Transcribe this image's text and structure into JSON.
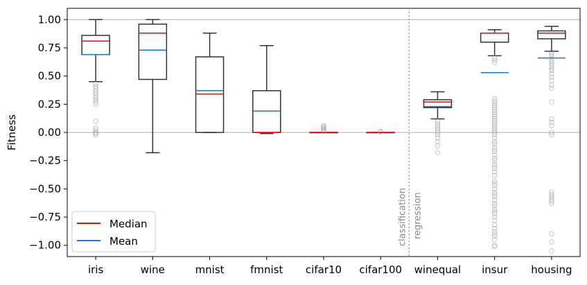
{
  "chart_data": {
    "type": "boxplot",
    "title": "",
    "xlabel": "",
    "ylabel": "Fitness",
    "ylim": [
      -1.1,
      1.1
    ],
    "yticks": [
      1.0,
      0.75,
      0.5,
      0.25,
      0.0,
      -0.25,
      -0.5,
      -0.75,
      -1.0
    ],
    "ytick_labels": [
      "1.00",
      "0.75",
      "0.50",
      "0.25",
      "0.00",
      "−0.25",
      "−0.50",
      "−0.75",
      "−1.00"
    ],
    "reference_lines": [
      1.0,
      0.0
    ],
    "categories": [
      "iris",
      "wine",
      "mnist",
      "fmnist",
      "cifar10",
      "cifar100",
      "winequal",
      "insur",
      "housing"
    ],
    "boxes": [
      {
        "q1": 0.69,
        "q3": 0.86,
        "median": 0.81,
        "mean": 0.69,
        "whisker_low": 0.45,
        "whisker_high": 1.0,
        "outliers": [
          0.43,
          0.41,
          0.39,
          0.37,
          0.35,
          0.33,
          0.31,
          0.29,
          0.27,
          0.25,
          0.1,
          0.04,
          0.02,
          0.0,
          -0.01,
          -0.02
        ]
      },
      {
        "q1": 0.47,
        "q3": 0.96,
        "median": 0.88,
        "mean": 0.73,
        "whisker_low": -0.18,
        "whisker_high": 1.0,
        "outliers": []
      },
      {
        "q1": 0.0,
        "q3": 0.67,
        "median": 0.34,
        "mean": 0.37,
        "whisker_low": 0.0,
        "whisker_high": 0.88,
        "outliers": []
      },
      {
        "q1": 0.0,
        "q3": 0.37,
        "median": 0.0,
        "mean": 0.19,
        "whisker_low": -0.01,
        "whisker_high": 0.77,
        "outliers": []
      },
      {
        "q1": 0.0,
        "q3": 0.0,
        "median": 0.0,
        "mean": 0.0,
        "whisker_low": 0.0,
        "whisker_high": 0.0,
        "outliers": [
          0.06,
          0.05,
          0.04,
          0.03,
          0.02,
          0.01
        ]
      },
      {
        "q1": 0.0,
        "q3": 0.0,
        "median": 0.0,
        "mean": 0.0,
        "whisker_low": 0.0,
        "whisker_high": 0.0,
        "outliers": [
          0.01,
          0.005
        ]
      },
      {
        "q1": 0.22,
        "q3": 0.29,
        "median": 0.27,
        "mean": 0.23,
        "whisker_low": 0.12,
        "whisker_high": 0.36,
        "outliers": [
          0.1,
          0.08,
          0.06,
          0.04,
          0.02,
          0.0,
          -0.02,
          -0.05,
          -0.08,
          -0.12,
          -0.18
        ]
      },
      {
        "q1": 0.8,
        "q3": 0.88,
        "median": 0.88,
        "mean": 0.53,
        "whisker_low": 0.68,
        "whisker_high": 0.91,
        "outliers": [
          0.66,
          0.64,
          0.62,
          0.3,
          0.28,
          0.26,
          0.24,
          0.22,
          0.2,
          0.18,
          0.16,
          0.14,
          0.12,
          0.1,
          0.08,
          0.06,
          0.04,
          0.02,
          0.0,
          -0.02,
          -0.05,
          -0.08,
          -0.1,
          -0.13,
          -0.15,
          -0.17,
          -0.2,
          -0.23,
          -0.25,
          -0.28,
          -0.3,
          -0.32,
          -0.35,
          -0.38,
          -0.43,
          -0.45,
          -0.47,
          -0.5,
          -0.53,
          -0.55,
          -0.57,
          -0.6,
          -0.63,
          -0.65,
          -0.68,
          -0.7,
          -0.72,
          -0.75,
          -0.78,
          -0.82,
          -0.85,
          -0.88,
          -0.9,
          -0.92,
          -0.95,
          -1.0,
          -1.01
        ]
      },
      {
        "q1": 0.83,
        "q3": 0.9,
        "median": 0.88,
        "mean": 0.66,
        "whisker_low": 0.72,
        "whisker_high": 0.94,
        "outliers": [
          0.71,
          0.69,
          0.67,
          0.65,
          0.63,
          0.61,
          0.59,
          0.57,
          0.55,
          0.52,
          0.49,
          0.46,
          0.42,
          0.39,
          0.27,
          0.12,
          0.09,
          0.06,
          0.0,
          -0.02,
          -0.53,
          -0.55,
          -0.57,
          -0.59,
          -0.61,
          -0.63,
          -0.9,
          -0.97,
          -1.05
        ]
      }
    ],
    "legend": [
      {
        "label": "Median",
        "color": "#ff0000"
      },
      {
        "label": "Mean",
        "color": "#1f77b4"
      }
    ],
    "legend_position": "bottom-left",
    "separator": {
      "after_category": "cifar100",
      "labels": [
        "classification",
        "regression"
      ]
    },
    "colors": {
      "box": "#333333",
      "median": "#ff0000",
      "mean": "#1f77b4",
      "outlier": "#999999",
      "refline": "#aaaaaa"
    }
  }
}
